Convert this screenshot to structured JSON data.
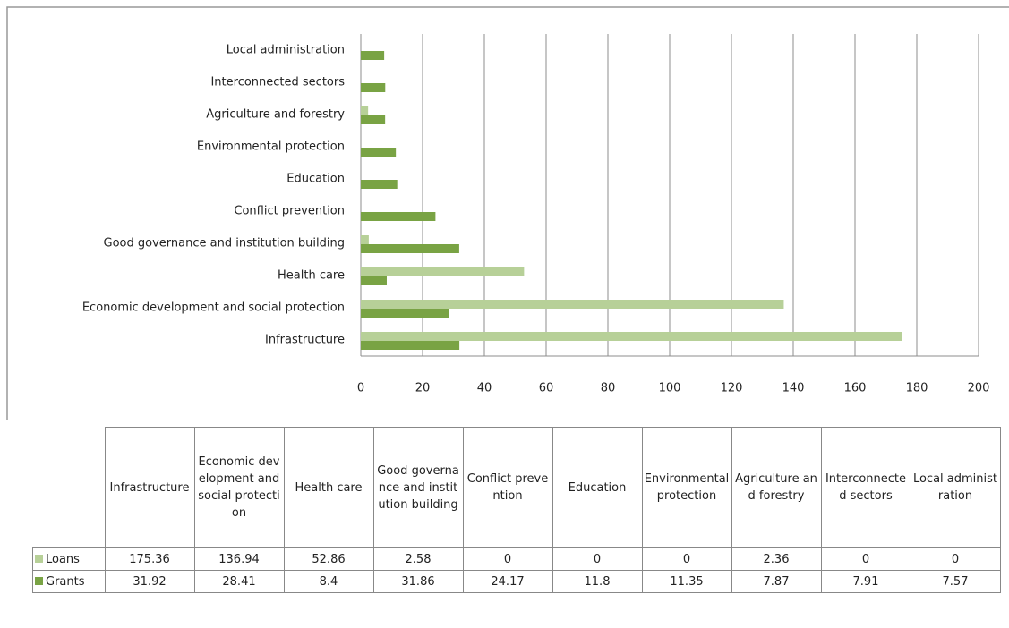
{
  "chart_data": {
    "type": "bar",
    "orientation": "horizontal",
    "categories": [
      "Infrastructure",
      "Economic development and social protection",
      "Health care",
      "Good governance and institution building",
      "Conflict prevention",
      "Education",
      "Environmental protection",
      "Agriculture and forestry",
      "Interconnected sectors",
      "Local administration"
    ],
    "series": [
      {
        "name": "Loans",
        "color": "#b7d098",
        "values": [
          175.36,
          136.94,
          52.86,
          2.58,
          0,
          0,
          0,
          2.36,
          0,
          0
        ]
      },
      {
        "name": "Grants",
        "color": "#79a344",
        "values": [
          31.92,
          28.41,
          8.4,
          31.86,
          24.17,
          11.8,
          11.35,
          7.87,
          7.91,
          7.57
        ]
      }
    ],
    "xlim": [
      0,
      200
    ],
    "xticks": [
      0,
      20,
      40,
      60,
      80,
      100,
      120,
      140,
      160,
      180,
      200
    ],
    "grid": true,
    "data_table": true
  }
}
